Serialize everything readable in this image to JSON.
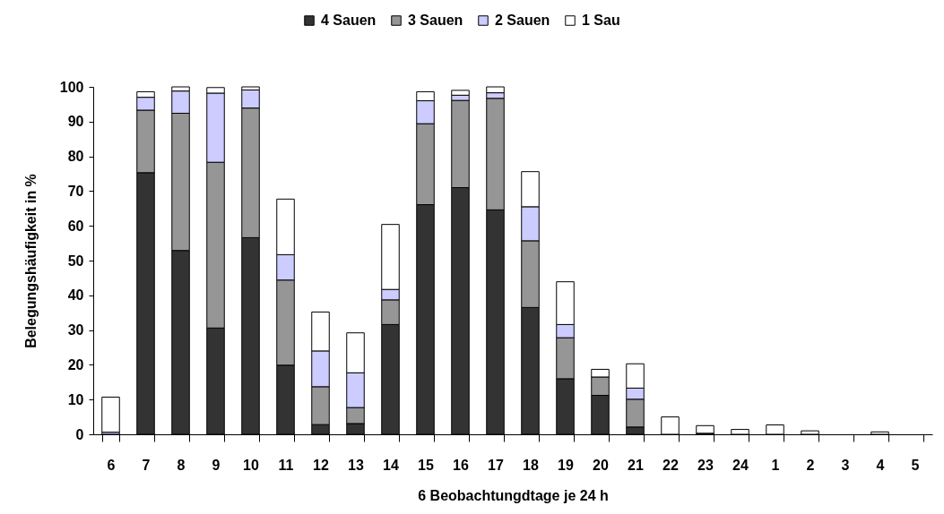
{
  "chart_data": {
    "type": "bar",
    "stacked": true,
    "legend": "top",
    "xlabel": "6 Beobachtungdtage je 24 h",
    "ylabel": "Belegungshäufigkeit in %",
    "categories": [
      "6",
      "7",
      "8",
      "9",
      "10",
      "11",
      "12",
      "13",
      "14",
      "15",
      "16",
      "17",
      "18",
      "19",
      "20",
      "21",
      "22",
      "23",
      "24",
      "1",
      "2",
      "3",
      "4",
      "5"
    ],
    "ylim": [
      0,
      100
    ],
    "yticks": [
      0,
      10,
      20,
      30,
      40,
      50,
      60,
      70,
      80,
      90,
      100
    ],
    "series": [
      {
        "name": "4 Sauen",
        "color": "#333333",
        "values": [
          null,
          75.3,
          52.9,
          30.6,
          56.6,
          19.9,
          2.8,
          3.1,
          31.6,
          66.1,
          71.0,
          64.6,
          36.5,
          16.0,
          11.2,
          2.1,
          null,
          0.3,
          null,
          null,
          null,
          null,
          null,
          null
        ]
      },
      {
        "name": "3 Sauen",
        "color": "#969696",
        "values": [
          null,
          18.0,
          39.5,
          47.7,
          37.3,
          24.5,
          10.9,
          4.6,
          7.1,
          23.3,
          25.1,
          32.1,
          19.2,
          11.8,
          5.3,
          8.0,
          null,
          null,
          null,
          null,
          null,
          null,
          null,
          null
        ]
      },
      {
        "name": "2 Sauen",
        "color": "#ccccff",
        "values": [
          0.6,
          3.7,
          6.4,
          19.9,
          5.2,
          7.3,
          10.3,
          10.0,
          3.0,
          6.6,
          1.5,
          1.6,
          9.8,
          3.8,
          null,
          3.2,
          null,
          null,
          null,
          null,
          null,
          null,
          null,
          null
        ]
      },
      {
        "name": "1 Sau",
        "color": "#ffffff",
        "values": [
          10.1,
          1.6,
          1.2,
          1.6,
          0.9,
          16.0,
          11.2,
          11.5,
          18.7,
          2.6,
          1.4,
          1.7,
          10.1,
          12.3,
          2.2,
          7.0,
          5.0,
          2.2,
          1.4,
          2.7,
          1.0,
          null,
          0.7,
          null
        ]
      }
    ]
  }
}
